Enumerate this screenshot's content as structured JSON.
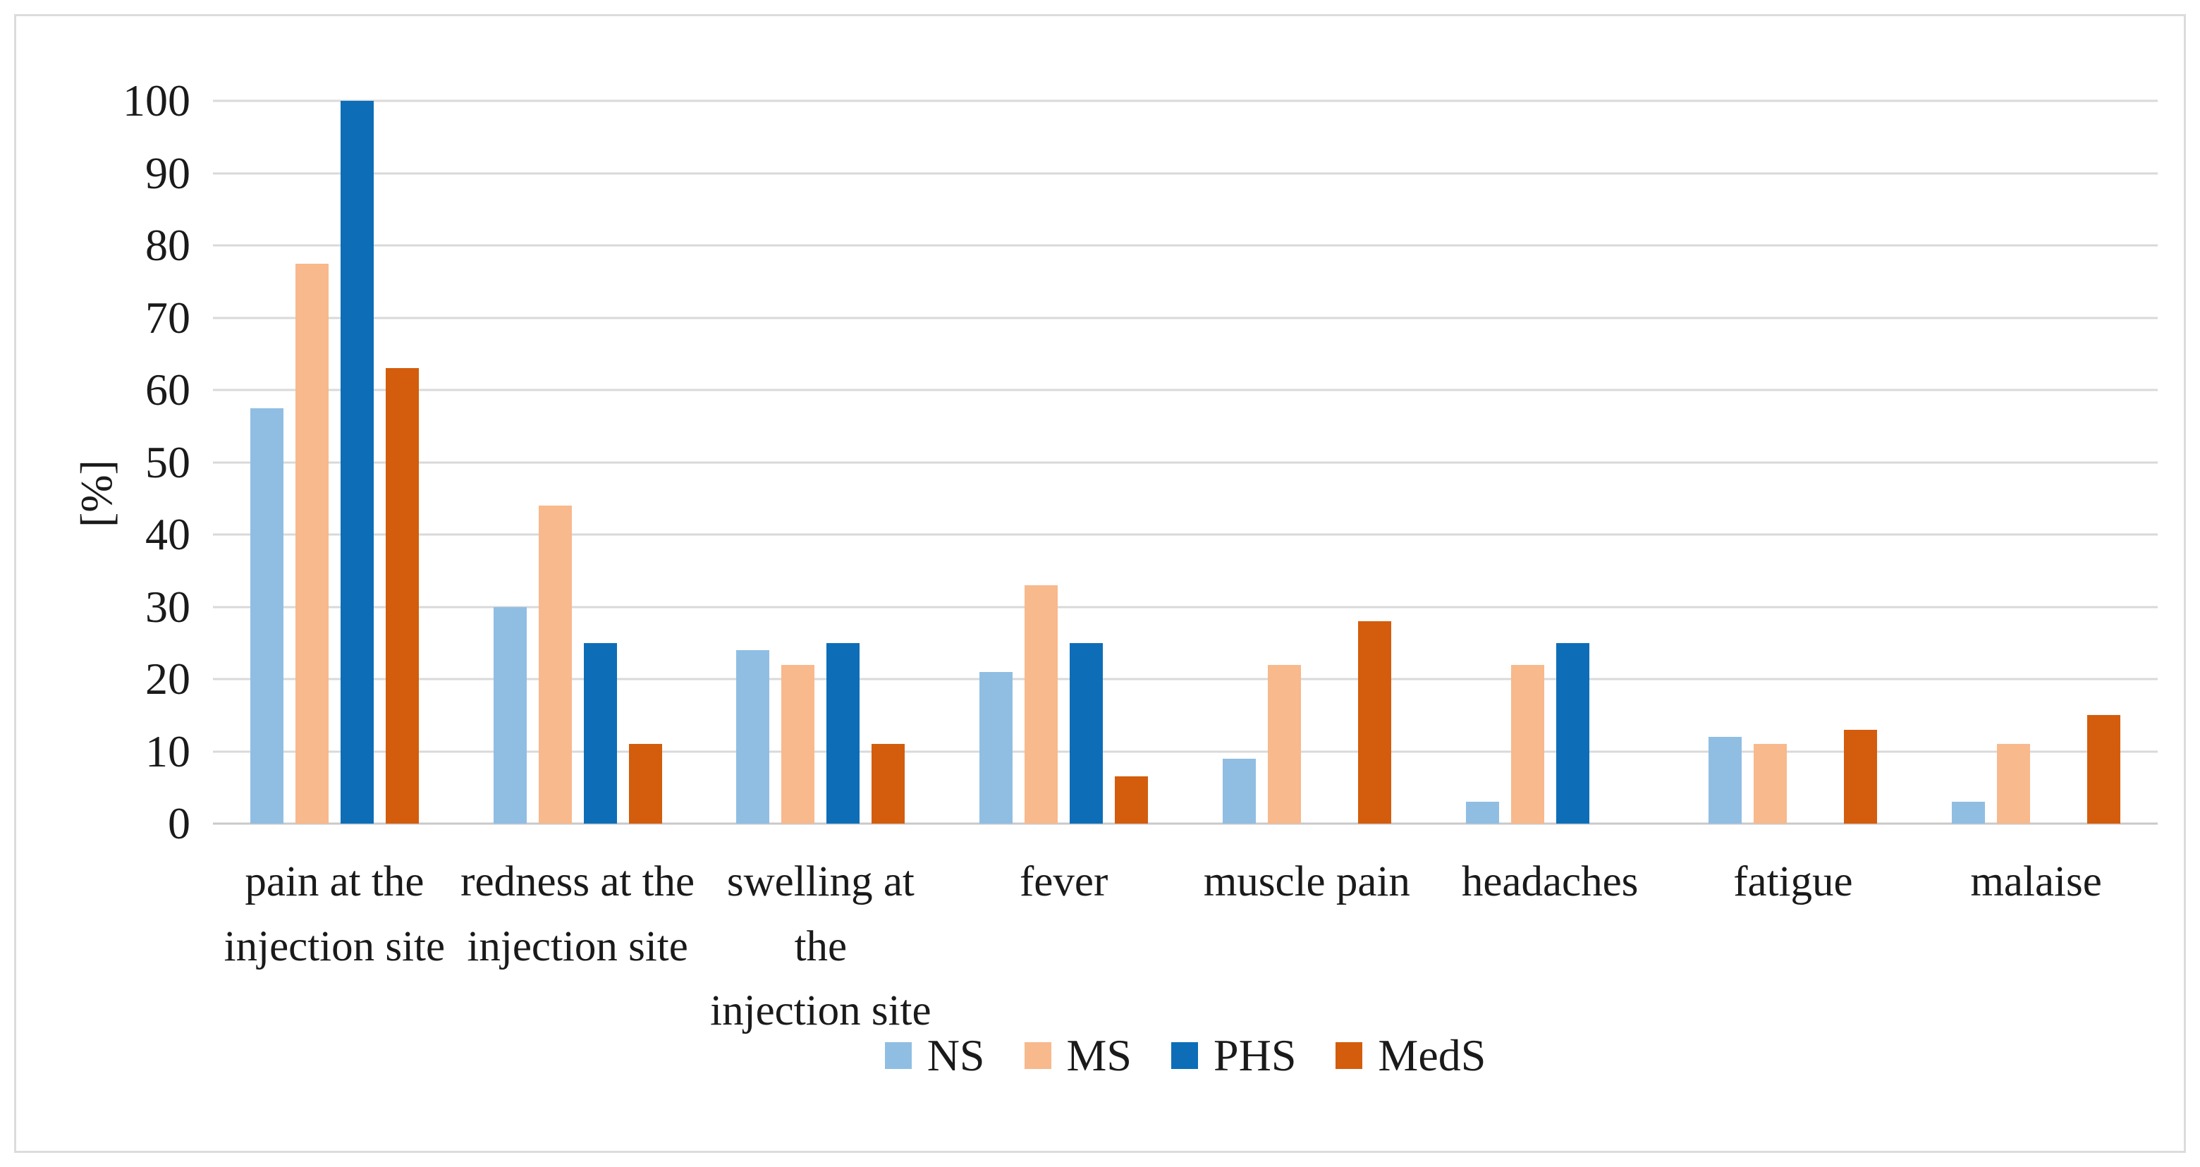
{
  "figure": {
    "background": "#ffffff",
    "border_color": "#dcdcdc"
  },
  "chart_data": {
    "type": "bar",
    "title": "",
    "xlabel": "",
    "ylabel": "[%]",
    "ylim": [
      0,
      100
    ],
    "y_tick_step": 10,
    "y_ticks": [
      "100",
      "90",
      "80",
      "70",
      "60",
      "50",
      "40",
      "30",
      "20",
      "10",
      "0"
    ],
    "grid": true,
    "grid_color": "#d9d9d9",
    "legend_position": "bottom",
    "categories": [
      "pain at the\ninjection site",
      "redness at the\ninjection site",
      "swelling at the\ninjection site",
      "fever",
      "muscle pain",
      "headaches",
      "fatigue",
      "malaise"
    ],
    "series": [
      {
        "name": "NS",
        "color": "#90bee3",
        "values": [
          57.5,
          30,
          24,
          21,
          9,
          3,
          12,
          3
        ]
      },
      {
        "name": "MS",
        "color": "#f8b98c",
        "values": [
          77.5,
          44,
          22,
          33,
          22,
          22,
          11,
          11
        ]
      },
      {
        "name": "PHS",
        "color": "#0d6eb7",
        "values": [
          100,
          25,
          25,
          25,
          0,
          25,
          0,
          0
        ]
      },
      {
        "name": "MedS",
        "color": "#d35d0d",
        "values": [
          63,
          11,
          11,
          6.5,
          28,
          0,
          13,
          15
        ]
      }
    ]
  }
}
